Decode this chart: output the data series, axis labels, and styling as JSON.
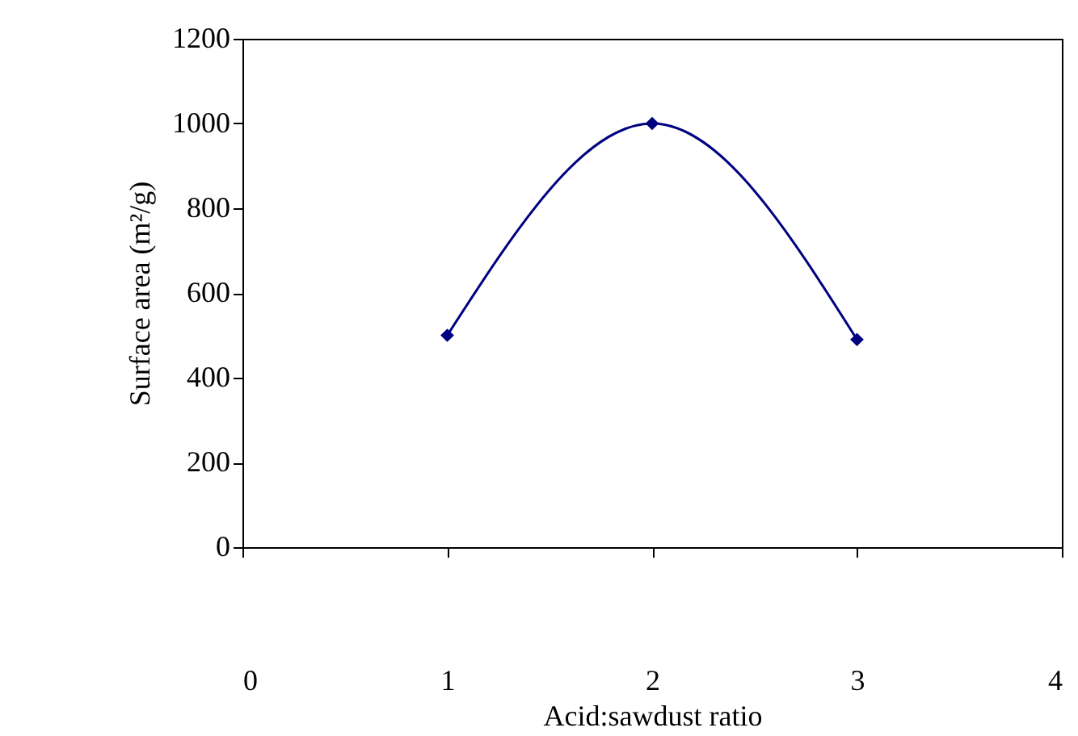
{
  "chart_data": {
    "type": "line",
    "xlabel": "Acid:sawdust ratio",
    "ylabel": "Surface area (m²/g)",
    "x": [
      1,
      2,
      3
    ],
    "series": [
      {
        "color": "#000080",
        "values": [
          500,
          1000,
          490
        ]
      }
    ],
    "xlim": [
      0,
      4
    ],
    "xticks": [
      0,
      1,
      2,
      3,
      4
    ],
    "ylim": [
      0,
      1200
    ],
    "yticks": [
      0,
      200,
      400,
      600,
      800,
      1000,
      1200
    ],
    "grid": false,
    "marker": "diamond",
    "line_style": "solid"
  }
}
